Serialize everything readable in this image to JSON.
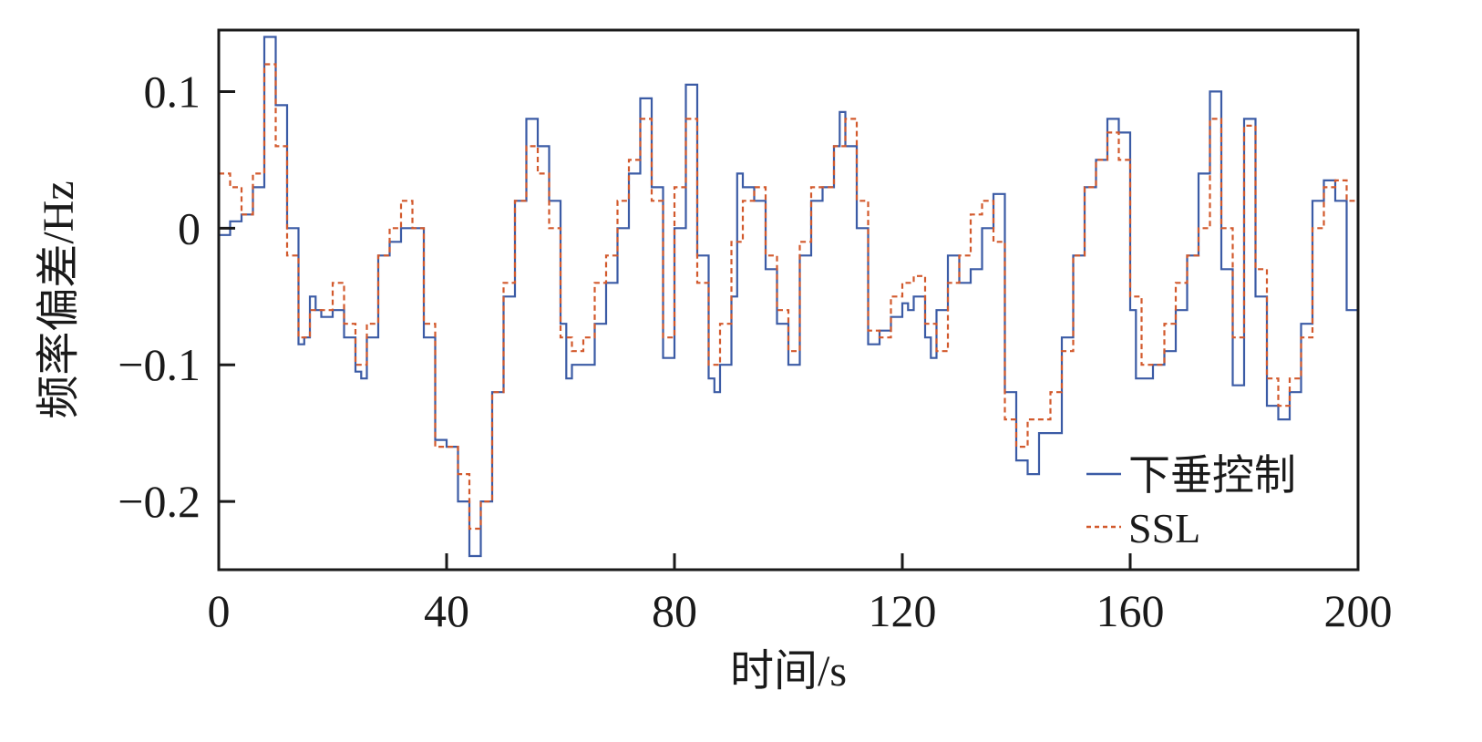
{
  "chart_data": {
    "type": "line",
    "xlabel": "时间/s",
    "ylabel": "频率偏差/Hz",
    "xlim": [
      0,
      200
    ],
    "ylim": [
      -0.25,
      0.145
    ],
    "xticks": [
      0,
      40,
      80,
      120,
      160,
      200
    ],
    "xtick_labels": [
      "0",
      "40",
      "80",
      "120",
      "160",
      "200"
    ],
    "yticks": [
      0.1,
      0,
      -0.1,
      -0.2
    ],
    "ytick_labels": [
      "0.1",
      "0",
      "−0.1",
      "−0.2"
    ],
    "grid": false,
    "legend_position": "bottom-right",
    "series": [
      {
        "name": "下垂控制",
        "color": "#3b5ba5",
        "dash": "solid",
        "x": [
          0,
          2,
          4,
          6,
          8,
          10,
          12,
          14,
          15,
          16,
          17,
          18,
          20,
          22,
          24,
          25,
          26,
          28,
          30,
          32,
          34,
          36,
          38,
          40,
          42,
          44,
          45,
          46,
          48,
          50,
          52,
          54,
          56,
          58,
          60,
          61,
          62,
          64,
          66,
          68,
          70,
          72,
          74,
          76,
          78,
          80,
          82,
          84,
          86,
          87,
          88,
          90,
          91,
          92,
          94,
          96,
          98,
          100,
          102,
          104,
          106,
          108,
          109,
          110,
          112,
          114,
          116,
          118,
          120,
          121,
          122,
          124,
          125,
          126,
          128,
          130,
          132,
          134,
          136,
          138,
          140,
          142,
          144,
          146,
          148,
          150,
          152,
          154,
          156,
          158,
          160,
          161,
          162,
          164,
          166,
          168,
          170,
          172,
          174,
          176,
          178,
          180,
          182,
          184,
          186,
          188,
          190,
          192,
          194,
          196,
          198,
          200
        ],
        "y": [
          -0.005,
          0.005,
          0.01,
          0.03,
          0.14,
          0.09,
          0.0,
          -0.085,
          -0.08,
          -0.05,
          -0.06,
          -0.065,
          -0.06,
          -0.08,
          -0.105,
          -0.11,
          -0.08,
          -0.02,
          -0.01,
          0.0,
          0.0,
          -0.08,
          -0.155,
          -0.16,
          -0.2,
          -0.24,
          -0.24,
          -0.2,
          -0.12,
          -0.05,
          0.02,
          0.08,
          0.06,
          0.02,
          -0.07,
          -0.11,
          -0.1,
          -0.1,
          -0.07,
          -0.04,
          0.0,
          0.04,
          0.095,
          0.03,
          -0.095,
          0.0,
          0.105,
          -0.02,
          -0.11,
          -0.12,
          -0.1,
          -0.05,
          0.04,
          0.03,
          0.02,
          -0.03,
          -0.07,
          -0.1,
          -0.02,
          0.02,
          0.03,
          0.06,
          0.085,
          0.06,
          0.0,
          -0.085,
          -0.075,
          -0.065,
          -0.055,
          -0.06,
          -0.05,
          -0.08,
          -0.095,
          -0.06,
          -0.02,
          -0.04,
          -0.03,
          0.0,
          0.025,
          -0.12,
          -0.17,
          -0.18,
          -0.15,
          -0.15,
          -0.08,
          -0.02,
          0.03,
          0.05,
          0.08,
          0.07,
          -0.06,
          -0.11,
          -0.11,
          -0.1,
          -0.09,
          -0.06,
          -0.02,
          0.04,
          0.1,
          -0.03,
          -0.115,
          0.08,
          -0.05,
          -0.13,
          -0.14,
          -0.12,
          -0.07,
          0.02,
          0.035,
          0.02,
          -0.06,
          -0.115
        ]
      },
      {
        "name": "SSL",
        "color": "#d2592c",
        "dash": "dashed",
        "x": [
          0,
          2,
          4,
          6,
          8,
          10,
          12,
          14,
          16,
          18,
          20,
          22,
          24,
          26,
          28,
          30,
          32,
          34,
          36,
          38,
          40,
          42,
          44,
          46,
          48,
          50,
          52,
          54,
          56,
          58,
          60,
          62,
          64,
          66,
          68,
          70,
          72,
          74,
          76,
          78,
          80,
          82,
          84,
          86,
          88,
          90,
          92,
          94,
          96,
          98,
          100,
          102,
          104,
          106,
          108,
          110,
          112,
          114,
          116,
          118,
          120,
          122,
          124,
          126,
          128,
          130,
          132,
          134,
          136,
          138,
          140,
          142,
          144,
          146,
          148,
          150,
          152,
          154,
          156,
          158,
          160,
          162,
          164,
          166,
          168,
          170,
          172,
          174,
          176,
          178,
          180,
          182,
          184,
          186,
          188,
          190,
          192,
          194,
          196,
          198,
          200
        ],
        "y": [
          0.04,
          0.03,
          0.01,
          0.04,
          0.12,
          0.06,
          -0.02,
          -0.08,
          -0.06,
          -0.06,
          -0.04,
          -0.07,
          -0.1,
          -0.07,
          -0.02,
          0.0,
          0.02,
          0.0,
          -0.07,
          -0.16,
          -0.16,
          -0.18,
          -0.22,
          -0.2,
          -0.12,
          -0.04,
          0.02,
          0.06,
          0.04,
          0.0,
          -0.08,
          -0.09,
          -0.08,
          -0.04,
          -0.02,
          0.02,
          0.05,
          0.08,
          0.02,
          -0.08,
          0.03,
          0.08,
          -0.04,
          -0.1,
          -0.07,
          -0.01,
          0.02,
          0.03,
          -0.02,
          -0.06,
          -0.09,
          -0.01,
          0.03,
          0.03,
          0.06,
          0.08,
          0.02,
          -0.075,
          -0.08,
          -0.05,
          -0.04,
          -0.035,
          -0.07,
          -0.09,
          -0.04,
          -0.02,
          0.01,
          0.02,
          -0.01,
          -0.14,
          -0.16,
          -0.14,
          -0.14,
          -0.12,
          -0.09,
          -0.02,
          0.03,
          0.05,
          0.07,
          0.05,
          -0.05,
          -0.1,
          -0.1,
          -0.07,
          -0.04,
          -0.02,
          0.0,
          0.08,
          0.0,
          -0.08,
          0.075,
          -0.03,
          -0.11,
          -0.13,
          -0.11,
          -0.08,
          0.0,
          0.03,
          0.035,
          0.02,
          -0.1
        ]
      }
    ]
  }
}
